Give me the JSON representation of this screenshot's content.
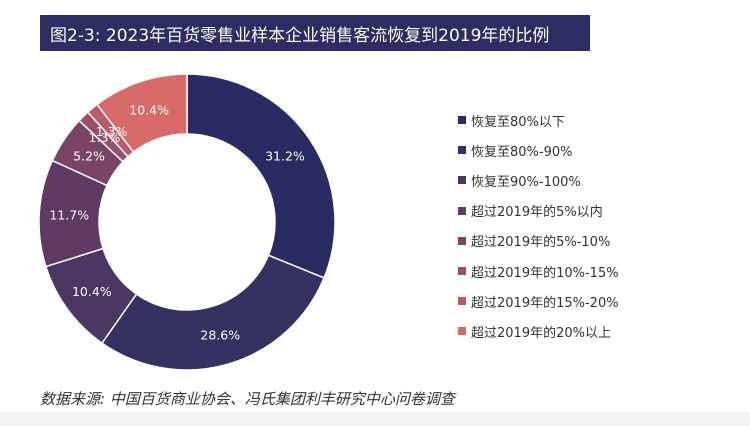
{
  "title": "图2-3: 2023年百货零售业样本企业销售客流恢复到2019年的比例",
  "source": "数据来源: 中国百货商业协会、冯氏集团利丰研究中心问卷调查",
  "chart_data": {
    "type": "pie",
    "donut": true,
    "legend_position": "right",
    "categories": [
      "恢复至80%以下",
      "恢复至80%-90%",
      "恢复至90%-100%",
      "超过2019年的5%以内",
      "超过2019年的5%-10%",
      "超过2019年的10%-15%",
      "超过2019年的15%-20%",
      "超过2019年的20%以上"
    ],
    "values": [
      31.2,
      28.6,
      10.4,
      11.7,
      5.2,
      1.3,
      1.3,
      10.4
    ],
    "labels": [
      "31.2%",
      "28.6%",
      "10.4%",
      "11.7%",
      "5.2%",
      "1.3%",
      "1.3%",
      "10.4%"
    ],
    "colors": [
      "#2a2b63",
      "#353262",
      "#4b3764",
      "#5f3a62",
      "#7a4565",
      "#9a4e69",
      "#bd5a6a",
      "#d96a6a"
    ]
  }
}
